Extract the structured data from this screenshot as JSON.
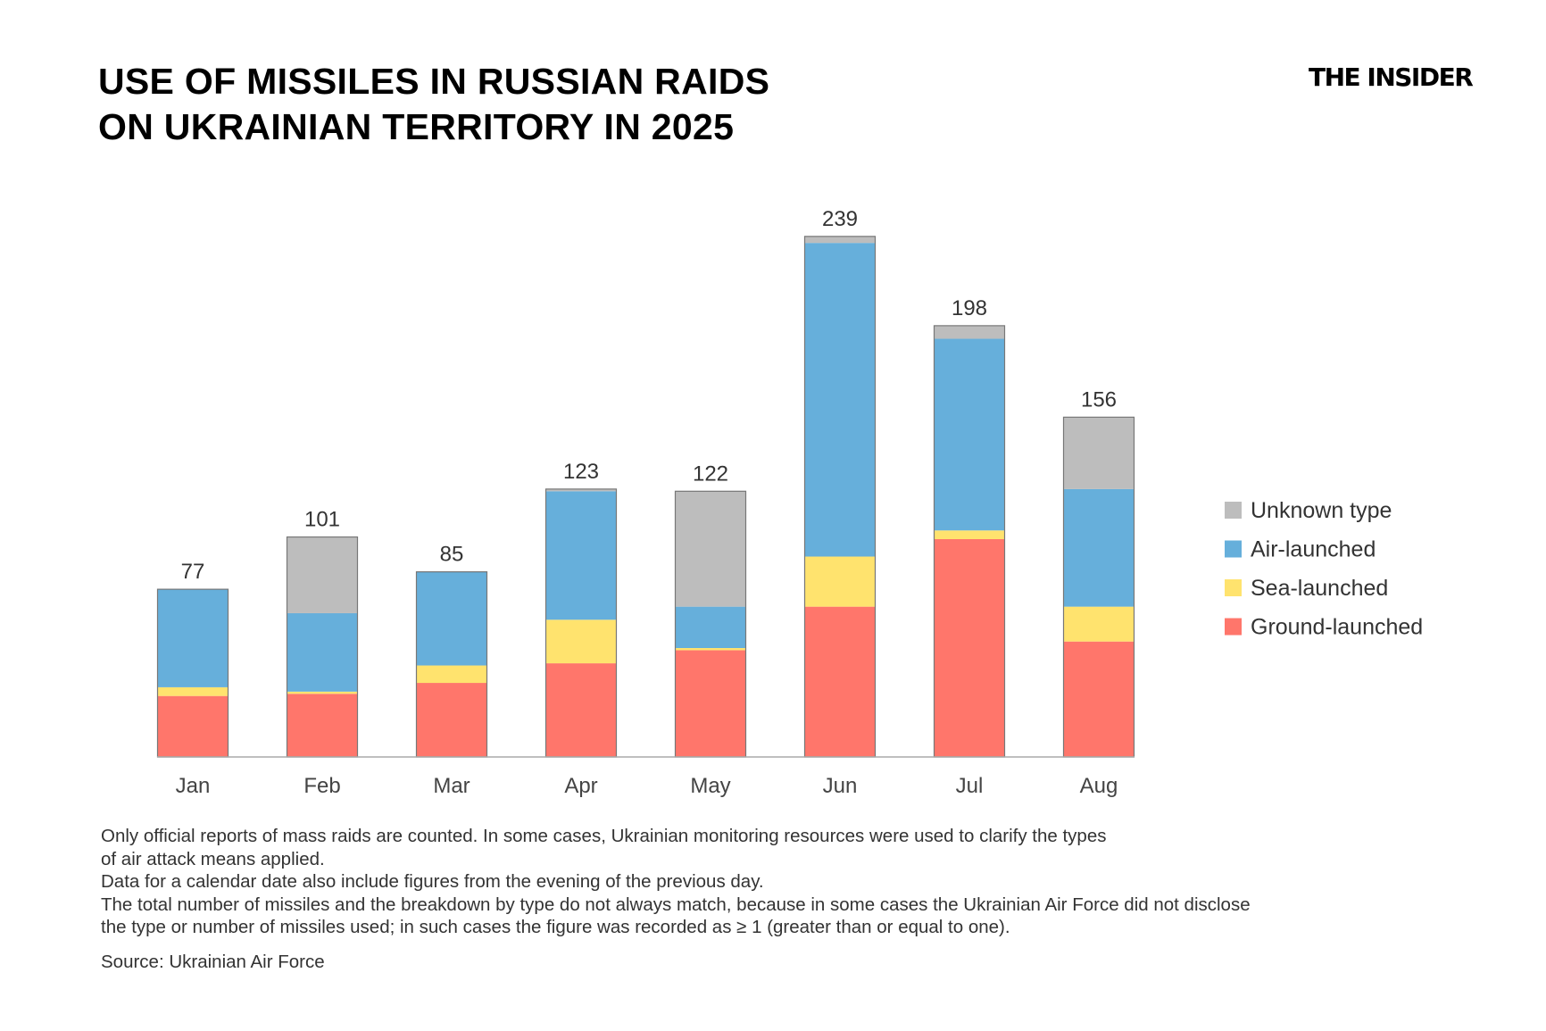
{
  "title_lines": [
    "USE OF MISSILES IN RUSSIAN RAIDS",
    "ON UKRAINIAN TERRITORY IN 2025"
  ],
  "logo": "THE INSIDER",
  "notes": [
    "Only official reports of mass raids are counted. In some cases, Ukrainian monitoring resources were used to clarify the types",
    "of air attack means applied.",
    "Data for a calendar date also include figures from the evening of the previous day.",
    "The total number of missiles and the breakdown by type do not always match, because in some cases the Ukrainian Air Force did not disclose",
    "the type or number of missiles used; in such cases the figure was recorded as ≥ 1 (greater than or equal to one)."
  ],
  "source": "Source: Ukrainian Air Force",
  "chart_data": {
    "type": "bar",
    "stacked": true,
    "title": "USE OF MISSILES IN RUSSIAN RAIDS ON UKRAINIAN TERRITORY IN 2025",
    "categories": [
      "Jan",
      "Feb",
      "Mar",
      "Apr",
      "May",
      "Jun",
      "Jul",
      "Aug"
    ],
    "totals": [
      77,
      101,
      85,
      123,
      122,
      239,
      198,
      156
    ],
    "series": [
      {
        "name": "Ground-launched",
        "color": "#ff766b",
        "values": [
          28,
          29,
          34,
          43,
          49,
          69,
          100,
          53
        ]
      },
      {
        "name": "Sea-launched",
        "color": "#ffe36e",
        "values": [
          4,
          1,
          8,
          20,
          1,
          23,
          4,
          16
        ]
      },
      {
        "name": "Air-launched",
        "color": "#66afdb",
        "values": [
          45,
          36,
          43,
          59,
          19,
          144,
          88,
          54
        ]
      },
      {
        "name": "Unknown type",
        "color": "#bdbdbd",
        "values": [
          0,
          35,
          0,
          1,
          53,
          3,
          6,
          33
        ]
      }
    ],
    "legend_order": [
      "Unknown type",
      "Air-launched",
      "Sea-launched",
      "Ground-launched"
    ],
    "legend_position": "right",
    "ylim": [
      0,
      250
    ],
    "grid": false,
    "y_axis_shown": false
  }
}
